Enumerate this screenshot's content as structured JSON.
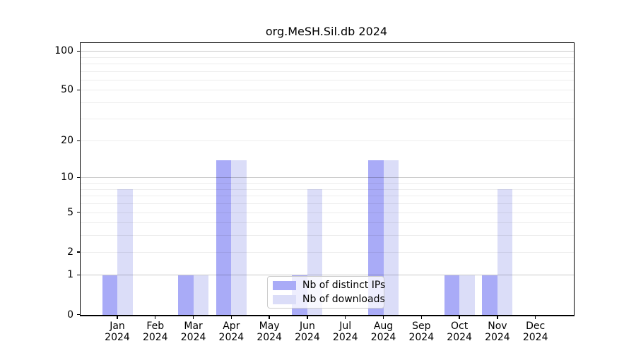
{
  "chart_data": {
    "type": "bar",
    "title": "org.MeSH.Sil.db 2024",
    "year": "2024",
    "categories": [
      "Jan",
      "Feb",
      "Mar",
      "Apr",
      "May",
      "Jun",
      "Jul",
      "Aug",
      "Sep",
      "Oct",
      "Nov",
      "Dec"
    ],
    "series": [
      {
        "name": "Nb of distinct IPs",
        "color": "#a9abf7",
        "values": [
          1,
          0,
          1,
          14,
          0,
          1,
          0,
          14,
          0,
          1,
          1,
          0
        ]
      },
      {
        "name": "Nb of downloads",
        "color": "#dbddf8",
        "values": [
          8,
          0,
          1,
          14,
          0,
          8,
          0,
          14,
          0,
          1,
          8,
          0
        ]
      }
    ],
    "y_axis": {
      "scale": "log10(value+1)",
      "tick_values": [
        0,
        1,
        2,
        5,
        10,
        20,
        50,
        100
      ],
      "major_grid_values": [
        1,
        10,
        100
      ],
      "minor_grid_values": [
        2,
        3,
        4,
        5,
        6,
        7,
        8,
        9,
        20,
        30,
        40,
        50,
        60,
        70,
        80,
        90
      ],
      "range": [
        0,
        100
      ]
    },
    "legend": {
      "position": "lower center"
    }
  }
}
